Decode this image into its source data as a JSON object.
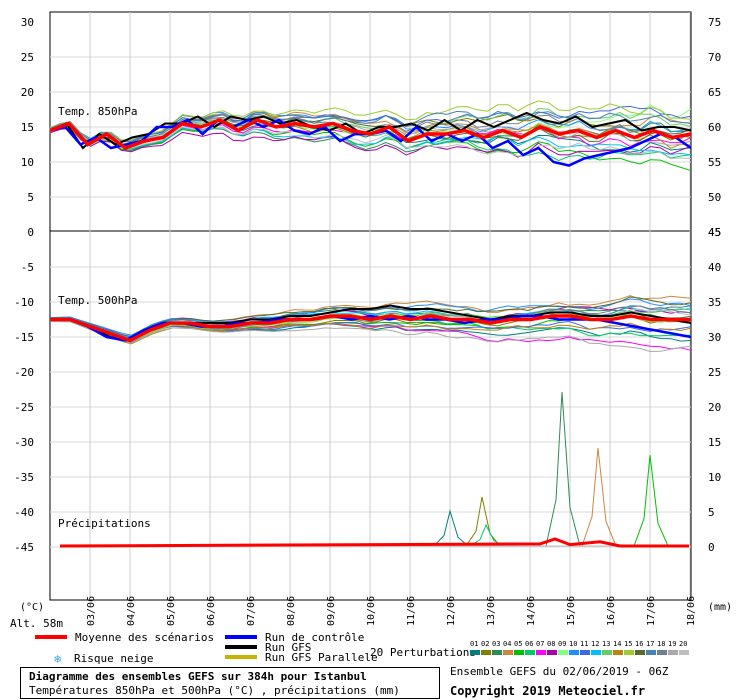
{
  "chart_data": {
    "type": "line",
    "title": "Diagramme des ensembles GEFS sur 384h pour Istanbul",
    "subtitle": "Températures 850hPa et 500hPa (°C) , précipitations (mm)",
    "left_axis_unit": "(°C)",
    "right_axis_unit": "(mm)",
    "altitude": "Alt. 58m",
    "x_dates": [
      "03/06",
      "04/06",
      "05/06",
      "06/06",
      "07/06",
      "08/06",
      "09/06",
      "10/06",
      "11/06",
      "12/06",
      "13/06",
      "14/06",
      "15/06",
      "16/06",
      "17/06",
      "18/06"
    ],
    "top_panel": {
      "label": "Temp. 850hPa",
      "left_ticks": [
        30,
        25,
        20,
        15,
        10,
        5,
        0
      ],
      "right_ticks": [
        75,
        70,
        65,
        60,
        55,
        50,
        45
      ],
      "ylim": [
        0,
        30
      ],
      "mean": [
        14.5,
        15.5,
        12.5,
        14,
        12,
        13,
        13.5,
        15.5,
        15,
        16,
        14.5,
        16,
        15,
        15.5,
        15,
        15.5,
        14.5,
        14,
        15,
        13,
        14,
        14,
        14.5,
        13.5,
        14.5,
        13.5,
        15,
        14,
        14.5,
        13.5,
        14.5,
        13.5,
        14.5,
        13.5,
        14
      ],
      "control": [
        14.5,
        15,
        12.5,
        13.5,
        12,
        12.5,
        13,
        15,
        15,
        16,
        14,
        16,
        15,
        16,
        15,
        16,
        14.5,
        14,
        15,
        13,
        14,
        14,
        14.5,
        13,
        15,
        13,
        14,
        13,
        14,
        12,
        13,
        11,
        12,
        10,
        9.5,
        10.5,
        11,
        11.5,
        12,
        13,
        14,
        13.5,
        12
      ],
      "gfs": [
        14.5,
        15.5,
        12,
        14,
        12.5,
        13.5,
        14,
        15.5,
        15.5,
        16.5,
        15,
        16.5,
        16,
        16.5,
        15.5,
        16,
        15,
        14.5,
        15.5,
        14,
        15,
        15,
        15.5,
        14.5,
        16,
        14.5,
        16,
        15,
        16,
        17,
        16,
        15.5,
        16.5,
        15,
        15.5,
        16,
        14.5,
        15,
        15,
        14.5
      ]
    },
    "bottom_panel": {
      "label": "Temp. 500hPa",
      "left_ticks": [
        0,
        -5,
        -10,
        -15,
        -20,
        -25,
        -30,
        -35,
        -40,
        -45
      ],
      "right_ticks": [
        45,
        40,
        35,
        30,
        25,
        20,
        15,
        10,
        5,
        0
      ],
      "ylim": [
        -50,
        0
      ],
      "mean": [
        -12.5,
        -12.5,
        -13.5,
        -14.5,
        -15.5,
        -14,
        -13,
        -13,
        -13.5,
        -13.5,
        -13,
        -13,
        -12.5,
        -12.5,
        -12,
        -12,
        -12.5,
        -12,
        -12.5,
        -12,
        -12.5,
        -12.5,
        -13,
        -12.5,
        -12.5,
        -12,
        -12,
        -12.5,
        -12.5,
        -12,
        -12.5,
        -12.5,
        -12.5
      ],
      "control": [
        -12.5,
        -12.5,
        -13.5,
        -15,
        -15.5,
        -14,
        -13,
        -13,
        -13.5,
        -13.5,
        -13,
        -13,
        -12.5,
        -12.5,
        -12.5,
        -12,
        -12.5,
        -12,
        -12.5,
        -12,
        -12.5,
        -12.5,
        -13,
        -12.5,
        -12.5,
        -12,
        -12,
        -12.5,
        -12.5,
        -12.5,
        -13,
        -13.5,
        -14,
        -14.5,
        -15
      ],
      "gfs": [
        -12.5,
        -12.5,
        -13.5,
        -15,
        -15.5,
        -14,
        -13,
        -13,
        -13,
        -13,
        -12.5,
        -12.5,
        -12,
        -12,
        -11.5,
        -11,
        -11,
        -10.5,
        -11,
        -11,
        -11.5,
        -12,
        -12.5,
        -12,
        -12,
        -11.5,
        -11.5,
        -12,
        -12,
        -11.5,
        -12,
        -12.5,
        -13
      ]
    },
    "precipitation": {
      "label": "Précipitations",
      "max_peak_mm": 22,
      "peaks": [
        [
          12.0,
          5
        ],
        [
          12.8,
          7
        ],
        [
          14.8,
          22
        ],
        [
          15.7,
          14
        ],
        [
          17.0,
          13
        ],
        [
          12.9,
          3
        ]
      ]
    },
    "legend": {
      "mean": "Moyenne des scénarios",
      "snow": "Risque neige",
      "control": "Run de contrôle",
      "gfs": "Run GFS",
      "gfs_parallel": "Run GFS Parallele",
      "perturbations": "20 Perturbations",
      "pert_labels": [
        "01",
        "02",
        "03",
        "04",
        "05",
        "06",
        "07",
        "08",
        "09",
        "10",
        "11",
        "12",
        "13",
        "14",
        "15",
        "16",
        "17",
        "18",
        "19",
        "20"
      ],
      "pert_colors": [
        "#008080",
        "#808000",
        "#2e8b57",
        "#cd853f",
        "#00c000",
        "#00cc66",
        "#ff00ff",
        "#aa00aa",
        "#80ff80",
        "#1e90ff",
        "#4169e1",
        "#00bfff",
        "#66cc66",
        "#b8860b",
        "#9acd32",
        "#556b2f",
        "#4682b4",
        "#708090",
        "#a9a9a9",
        "#bebebe"
      ]
    },
    "colors": {
      "mean": "#ff0000",
      "control": "#0000ff",
      "gfs": "#000000",
      "gfs_parallel": "#c8b400",
      "snow": "#33aaee"
    }
  },
  "footer": {
    "ensemble_run": "Ensemble GEFS du 02/06/2019 - 06Z",
    "copyright": "Copyright 2019 Meteociel.fr"
  }
}
